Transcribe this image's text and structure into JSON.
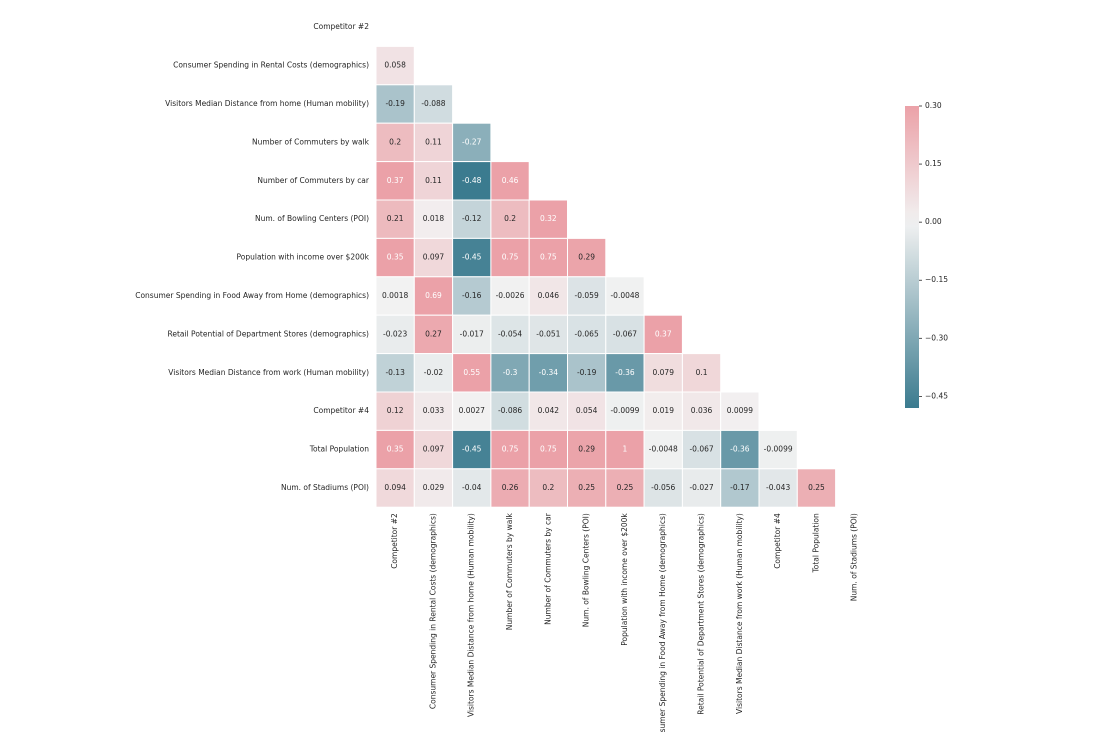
{
  "chart_data": {
    "type": "heatmap",
    "categories": [
      "Competitor #2",
      "Consumer Spending in Rental Costs (demographics)",
      "Visitors Median Distance from home (Human mobility)",
      "Number of Commuters by walk",
      "Number of Commuters by car",
      "Num. of Bowling Centers (POI)",
      "Population with income over $200k",
      "Consumer Spending in Food Away from Home (demographics)",
      "Retail Potential of Department Stores (demographics)",
      "Visitors Median Distance from work (Human mobility)",
      "Competitor #4",
      "Total Population",
      "Num. of Stadiums (POI)"
    ],
    "values": [
      [
        null,
        null,
        null,
        null,
        null,
        null,
        null,
        null,
        null,
        null,
        null,
        null,
        null
      ],
      [
        0.058,
        null,
        null,
        null,
        null,
        null,
        null,
        null,
        null,
        null,
        null,
        null,
        null
      ],
      [
        -0.19,
        -0.088,
        null,
        null,
        null,
        null,
        null,
        null,
        null,
        null,
        null,
        null,
        null
      ],
      [
        0.2,
        0.11,
        -0.27,
        null,
        null,
        null,
        null,
        null,
        null,
        null,
        null,
        null,
        null
      ],
      [
        0.37,
        0.11,
        -0.48,
        0.46,
        null,
        null,
        null,
        null,
        null,
        null,
        null,
        null,
        null
      ],
      [
        0.21,
        0.018,
        -0.12,
        0.2,
        0.32,
        null,
        null,
        null,
        null,
        null,
        null,
        null,
        null
      ],
      [
        0.35,
        0.097,
        -0.45,
        0.75,
        0.75,
        0.29,
        null,
        null,
        null,
        null,
        null,
        null,
        null
      ],
      [
        0.0018,
        0.69,
        -0.16,
        -0.0026,
        0.046,
        -0.059,
        -0.0048,
        null,
        null,
        null,
        null,
        null,
        null
      ],
      [
        -0.023,
        0.27,
        -0.017,
        -0.054,
        -0.051,
        -0.065,
        -0.067,
        0.37,
        null,
        null,
        null,
        null,
        null
      ],
      [
        -0.13,
        -0.02,
        0.55,
        -0.3,
        -0.34,
        -0.19,
        -0.36,
        0.079,
        0.1,
        null,
        null,
        null,
        null
      ],
      [
        0.12,
        0.033,
        0.0027,
        -0.086,
        0.042,
        0.054,
        -0.0099,
        0.019,
        0.036,
        0.0099,
        null,
        null,
        null
      ],
      [
        0.35,
        0.097,
        -0.45,
        0.75,
        0.75,
        0.29,
        1,
        -0.0048,
        -0.067,
        -0.36,
        -0.0099,
        null,
        null
      ],
      [
        0.094,
        0.029,
        -0.04,
        0.26,
        0.2,
        0.25,
        0.25,
        -0.056,
        -0.027,
        -0.17,
        -0.043,
        0.25,
        null
      ]
    ],
    "colormap": [
      "#3b7b8f",
      "#f2f2f2",
      "#e7717b"
    ],
    "clim": [
      -0.48,
      0.3
    ],
    "cbar_ticks": [
      {
        "value": 0.3,
        "label": "0.30"
      },
      0.15,
      {
        "value": 0,
        "label": "0.00"
      },
      {
        "value": -0.15,
        "label": "−0.15"
      },
      {
        "value": -0.3,
        "label": "−0.30"
      },
      {
        "value": -0.45,
        "label": "−0.45"
      }
    ]
  }
}
